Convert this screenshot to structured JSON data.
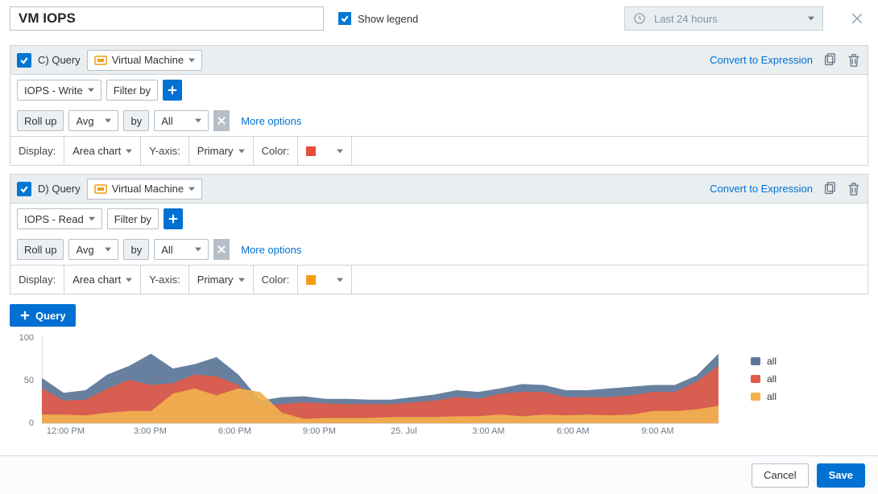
{
  "title": "VM IOPS",
  "show_legend_label": "Show legend",
  "show_legend_checked": true,
  "time_range_label": "Last 24 hours",
  "queries": [
    {
      "id": "C",
      "checked": true,
      "head_label": "C) Query",
      "resource_label": "Virtual Machine",
      "resource_icon_color": "#f39c12",
      "convert_label": "Convert to Expression",
      "metric": "IOPS - Write",
      "filter_label": "Filter by",
      "rollup_label": "Roll up",
      "rollup_fn": "Avg",
      "by_label": "by",
      "by_value": "All",
      "more_label": "More options",
      "display_label": "Display:",
      "display_type": "Area chart",
      "yaxis_label": "Y-axis:",
      "yaxis_value": "Primary",
      "color_label": "Color:",
      "color_value": "#e74c3c"
    },
    {
      "id": "D",
      "checked": true,
      "head_label": "D) Query",
      "resource_label": "Virtual Machine",
      "resource_icon_color": "#f39c12",
      "convert_label": "Convert to Expression",
      "metric": "IOPS - Read",
      "filter_label": "Filter by",
      "rollup_label": "Roll up",
      "rollup_fn": "Avg",
      "by_label": "by",
      "by_value": "All",
      "more_label": "More options",
      "display_label": "Display:",
      "display_type": "Area chart",
      "yaxis_label": "Y-axis:",
      "yaxis_value": "Primary",
      "color_label": "Color:",
      "color_value": "#f39c12"
    }
  ],
  "add_query_label": "Query",
  "chart": {
    "y_max": 100,
    "y_ticks": [
      0,
      50,
      100
    ],
    "x_labels": [
      "12:00 PM",
      "3:00 PM",
      "6:00 PM",
      "9:00 PM",
      "25. Jul",
      "3:00 AM",
      "6:00 AM",
      "9:00 AM"
    ],
    "x_positions_pct": [
      3.5,
      16,
      28.5,
      41,
      53.5,
      66,
      78.5,
      91
    ],
    "series": [
      {
        "name": "all",
        "color": "#5b7597",
        "values": [
          52,
          35,
          38,
          56,
          66,
          80,
          63,
          68,
          76,
          56,
          26,
          30,
          31,
          28,
          28,
          27,
          27,
          30,
          33,
          38,
          36,
          40,
          45,
          44,
          38,
          38,
          40,
          42,
          44,
          44,
          55,
          80
        ]
      },
      {
        "name": "all",
        "color": "#e15b4a",
        "values": [
          40,
          26,
          27,
          40,
          50,
          44,
          46,
          56,
          54,
          44,
          20,
          22,
          24,
          23,
          22,
          22,
          22,
          24,
          26,
          30,
          28,
          34,
          36,
          36,
          30,
          30,
          30,
          32,
          36,
          36,
          48,
          66
        ]
      },
      {
        "name": "all",
        "color": "#f1b04e",
        "values": [
          10,
          10,
          9,
          12,
          14,
          14,
          34,
          40,
          32,
          40,
          36,
          12,
          5,
          6,
          6,
          6,
          7,
          7,
          7,
          8,
          8,
          10,
          8,
          10,
          9,
          10,
          9,
          10,
          14,
          14,
          16,
          20
        ]
      }
    ],
    "axis_color": "#b6bec8",
    "label_color": "#6e7a87"
  },
  "footer": {
    "cancel": "Cancel",
    "save": "Save"
  }
}
